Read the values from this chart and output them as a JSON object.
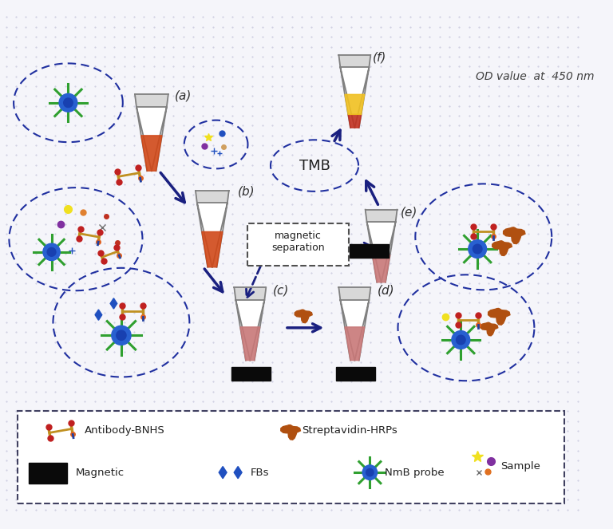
{
  "bg_color": "#f5f5fa",
  "dot_color": "#c0c0d8",
  "arrow_color": "#1a2080",
  "dashed_color": "#2030a0",
  "magnetic_color": "#0a0a0a",
  "mag_sep_text": "magnetic\nseparation",
  "od_text": "OD value  at  450 nm",
  "tmb_text": "TMB",
  "labels": {
    "a": "(a)",
    "b": "(b)",
    "c": "(c)",
    "d": "(d)",
    "e": "(e)",
    "f": "(f)"
  },
  "tube_liquid_orange": "#d04818",
  "tube_liquid_pink": "#c87878",
  "tube_liquid_yellow": "#f0c020",
  "tube_liquid_red": "#c03020",
  "tube_body": "#ffffff",
  "tube_outline": "#808080",
  "tube_cap": "#d8d8d8",
  "nmb_center": "#1840b0",
  "nmb_outer": "#2860d0",
  "nmb_spike": "#30a030",
  "fbs_color": "#2050c0",
  "strep_color": "#b05010",
  "ab_gold": "#c09020",
  "ab_red": "#c02020",
  "ab_blue": "#2040a0",
  "ab_orange": "#e06020",
  "sample_yellow": "#f0e020",
  "sample_purple": "#8030a0",
  "sample_orange": "#e07020",
  "sample_gray": "#707070",
  "legend_items": {
    "antibody_bnhs": "Antibody-BNHS",
    "streptavidin_hrps": "Streptavidin-HRPs",
    "magnetic": "Magnetic",
    "fbs": "FBs",
    "nmb_probe": "NmB probe",
    "sample": "Sample"
  }
}
